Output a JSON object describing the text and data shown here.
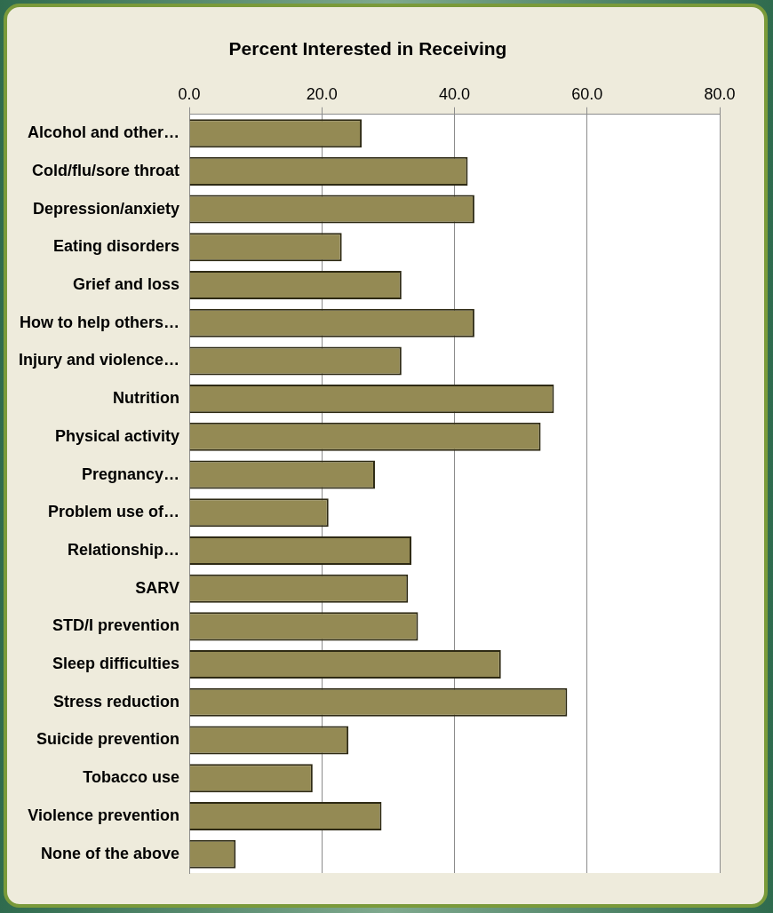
{
  "chart_data": {
    "type": "bar",
    "orientation": "horizontal",
    "title": "Percent Interested in Receiving",
    "categories": [
      "Alcohol and other…",
      "Cold/flu/sore throat",
      "Depression/anxiety",
      "Eating disorders",
      "Grief and loss",
      "How to help others…",
      "Injury and violence…",
      "Nutrition",
      "Physical activity",
      "Pregnancy…",
      "Problem use of…",
      "Relationship…",
      "SARV",
      "STD/I prevention",
      "Sleep difficulties",
      "Stress reduction",
      "Suicide prevention",
      "Tobacco use",
      "Violence prevention",
      "None of the above"
    ],
    "values": [
      26,
      42,
      43,
      23,
      32,
      43,
      32,
      55,
      53,
      28,
      21,
      33.5,
      33,
      34.5,
      47,
      57,
      24,
      18.6,
      29,
      7
    ],
    "color": "#948a54",
    "xlim": [
      0,
      80
    ],
    "xticks": [
      {
        "value": 0,
        "label": "0.0"
      },
      {
        "value": 20,
        "label": "20.0"
      },
      {
        "value": 40,
        "label": "40.0"
      },
      {
        "value": 60,
        "label": "60.0"
      },
      {
        "value": 80,
        "label": "80.0"
      }
    ],
    "grid": "x",
    "legend": false
  }
}
